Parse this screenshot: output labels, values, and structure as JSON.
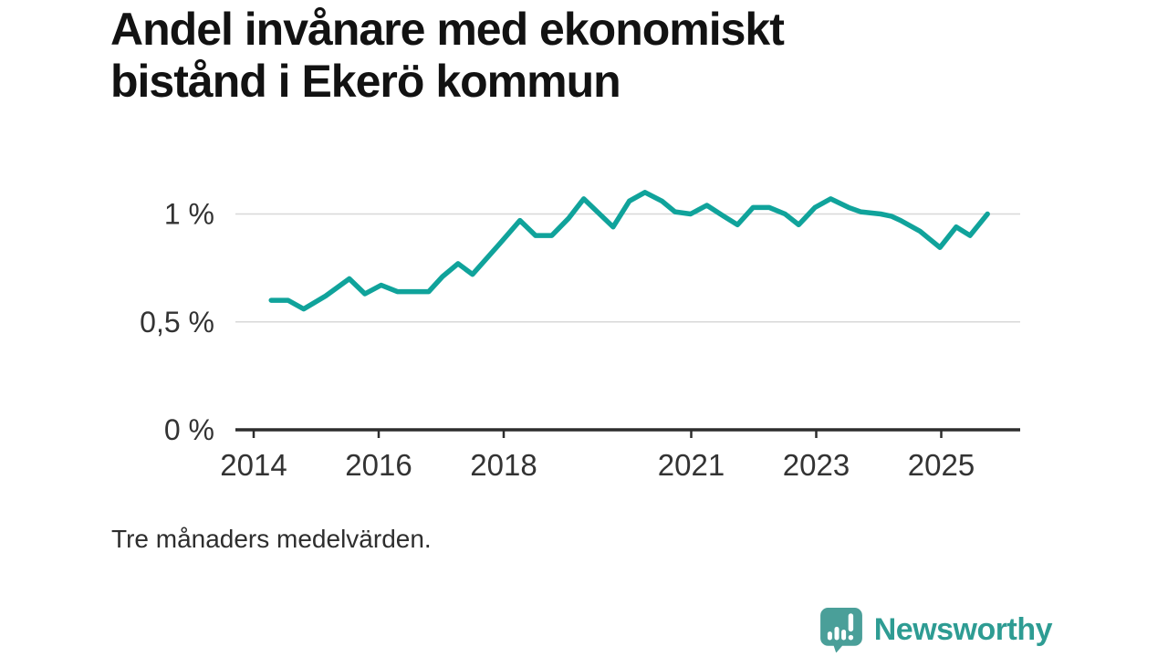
{
  "header": {
    "title_line1": "Andel invånare med ekonomiskt",
    "title_line2": "bistånd i Ekerö kommun"
  },
  "footer": {
    "note": "Tre månaders medelvärden.",
    "brand": "Newsworthy"
  },
  "colors": {
    "line": "#10a39b",
    "grid": "#d8d8d8",
    "axis": "#2d2d2d",
    "tick_label": "#333333",
    "logo_icon": "#4a9f99",
    "logo_text": "#2e9c93"
  },
  "chart_data": {
    "type": "line",
    "title": "Andel invånare med ekonomiskt bistånd i Ekerö kommun",
    "subtitle": "Tre månaders medelvärden.",
    "unit": "%",
    "xlabel": "",
    "ylabel": "",
    "grid": "horizontal",
    "legend": "none",
    "x_range": [
      2013.71,
      2026.26
    ],
    "y_range": [
      0,
      1.16
    ],
    "x_ticks": [
      {
        "value": 2014,
        "label": "2014"
      },
      {
        "value": 2016,
        "label": "2016"
      },
      {
        "value": 2018,
        "label": "2018"
      },
      {
        "value": 2021,
        "label": "2021"
      },
      {
        "value": 2023,
        "label": "2023"
      },
      {
        "value": 2025,
        "label": "2025"
      }
    ],
    "y_ticks": [
      {
        "value": 0,
        "label": "0 %"
      },
      {
        "value": 0.5,
        "label": "0,5 %"
      },
      {
        "value": 1,
        "label": "1 %"
      }
    ],
    "series": [
      {
        "name": "Andel invånare med ekonomiskt bistånd",
        "points": [
          [
            2014.28,
            0.6
          ],
          [
            2014.55,
            0.6
          ],
          [
            2014.8,
            0.56
          ],
          [
            2015.15,
            0.62
          ],
          [
            2015.53,
            0.7
          ],
          [
            2015.78,
            0.63
          ],
          [
            2016.04,
            0.67
          ],
          [
            2016.3,
            0.64
          ],
          [
            2016.55,
            0.64
          ],
          [
            2016.8,
            0.64
          ],
          [
            2017.02,
            0.71
          ],
          [
            2017.27,
            0.77
          ],
          [
            2017.5,
            0.72
          ],
          [
            2017.93,
            0.86
          ],
          [
            2018.26,
            0.97
          ],
          [
            2018.51,
            0.9
          ],
          [
            2018.77,
            0.9
          ],
          [
            2019.04,
            0.98
          ],
          [
            2019.28,
            1.07
          ],
          [
            2019.75,
            0.94
          ],
          [
            2020.01,
            1.06
          ],
          [
            2020.26,
            1.1
          ],
          [
            2020.53,
            1.06
          ],
          [
            2020.74,
            1.01
          ],
          [
            2020.99,
            1.0
          ],
          [
            2021.25,
            1.04
          ],
          [
            2021.52,
            0.99
          ],
          [
            2021.74,
            0.95
          ],
          [
            2021.99,
            1.03
          ],
          [
            2022.25,
            1.03
          ],
          [
            2022.5,
            1.0
          ],
          [
            2022.72,
            0.95
          ],
          [
            2022.98,
            1.03
          ],
          [
            2023.23,
            1.07
          ],
          [
            2023.52,
            1.03
          ],
          [
            2023.71,
            1.01
          ],
          [
            2024.03,
            1.0
          ],
          [
            2024.2,
            0.99
          ],
          [
            2024.35,
            0.97
          ],
          [
            2024.66,
            0.92
          ],
          [
            2024.98,
            0.845
          ],
          [
            2025.24,
            0.94
          ],
          [
            2025.46,
            0.9
          ],
          [
            2025.74,
            1.0
          ]
        ]
      }
    ]
  }
}
